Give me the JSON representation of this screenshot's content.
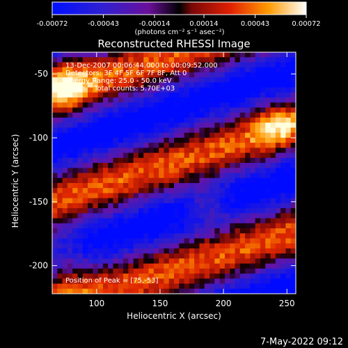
{
  "chart_data": {
    "type": "heatmap",
    "title": "Reconstructed RHESSI Image",
    "xlabel": "Heliocentric X (arcsec)",
    "ylabel": "Heliocentric Y (arcsec)",
    "xlim": [
      65,
      257
    ],
    "ylim": [
      -222,
      -33
    ],
    "x_ticks": [
      100,
      150,
      200,
      250
    ],
    "y_ticks": [
      -50,
      -100,
      -150,
      -200
    ],
    "colorbar": {
      "ticks": [
        "-0.00072",
        "-0.00043",
        "-0.00014",
        "0.00014",
        "0.00043",
        "0.00072"
      ],
      "tick_values": [
        -0.00072,
        -0.00043,
        -0.00014,
        0.00014,
        0.00043,
        0.00072
      ],
      "range": [
        -0.00072,
        0.00072
      ],
      "colors": [
        "#0000ff",
        "#5a1a9a",
        "#8a1010",
        "#e03000",
        "#ff9000",
        "#ffffff"
      ],
      "units": "(photons cm⁻² s⁻¹ asec⁻²)"
    },
    "annotations": {
      "time": "13-Dec-2007 00:06:44.000 to 00:09:52.000",
      "detectors": "Detectors: 3F 4F 5F 6F 7F 8F, Att 0",
      "energy": "Energy Range: 25.0 - 50.0 keV",
      "counts": "Clean    Total counts: 5.70E+03",
      "peak": "Position of Peak = [75,-53]"
    },
    "peak": [
      75,
      -53
    ]
  },
  "footer": {
    "timestamp": "7-May-2022 09:12"
  }
}
